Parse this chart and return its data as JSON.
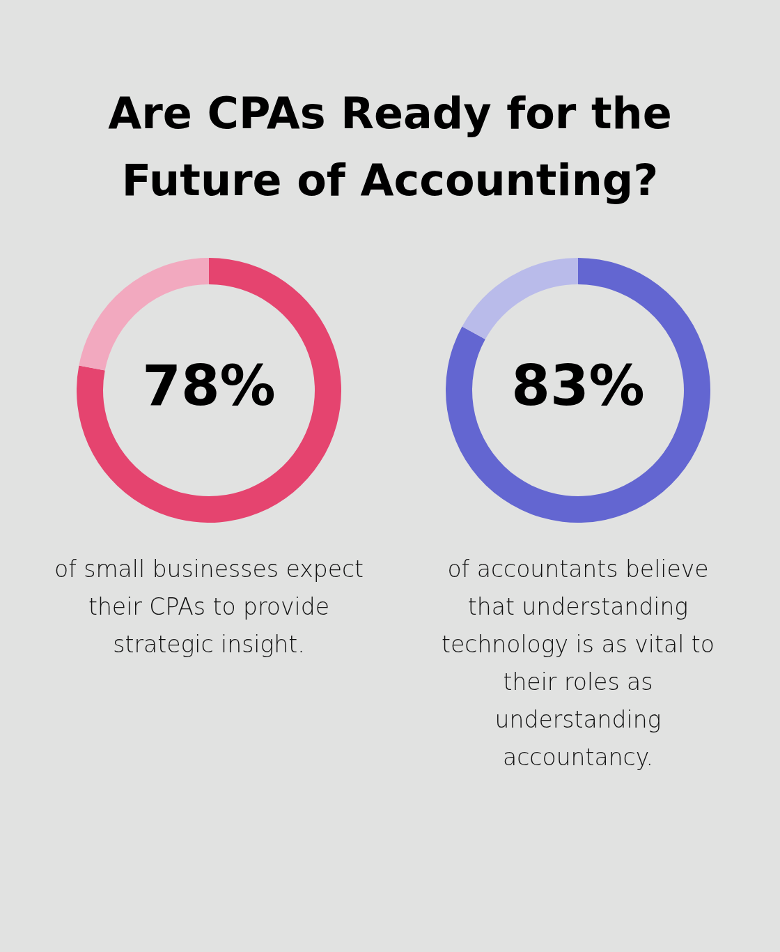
{
  "chart_data": [
    {
      "type": "donut",
      "title": "Are CPAs Ready for the Future of Accounting?",
      "categories": [
        null,
        null
      ],
      "values": [
        78,
        22
      ],
      "colors": [
        "#e5446f",
        "#f2a9bf"
      ],
      "value_labels": [
        "78%",
        null
      ],
      "annotations": [
        "of small businesses expect their CPAs to provide strategic insight."
      ]
    },
    {
      "type": "donut",
      "categories": [
        null,
        null
      ],
      "values": [
        83,
        17
      ],
      "colors": [
        "#6366d1",
        "#b9bbea"
      ],
      "value_labels": [
        "83%",
        null
      ],
      "annotations": [
        "of accountants believe that understanding technology is as vital to their roles as understanding accountancy."
      ]
    }
  ]
}
